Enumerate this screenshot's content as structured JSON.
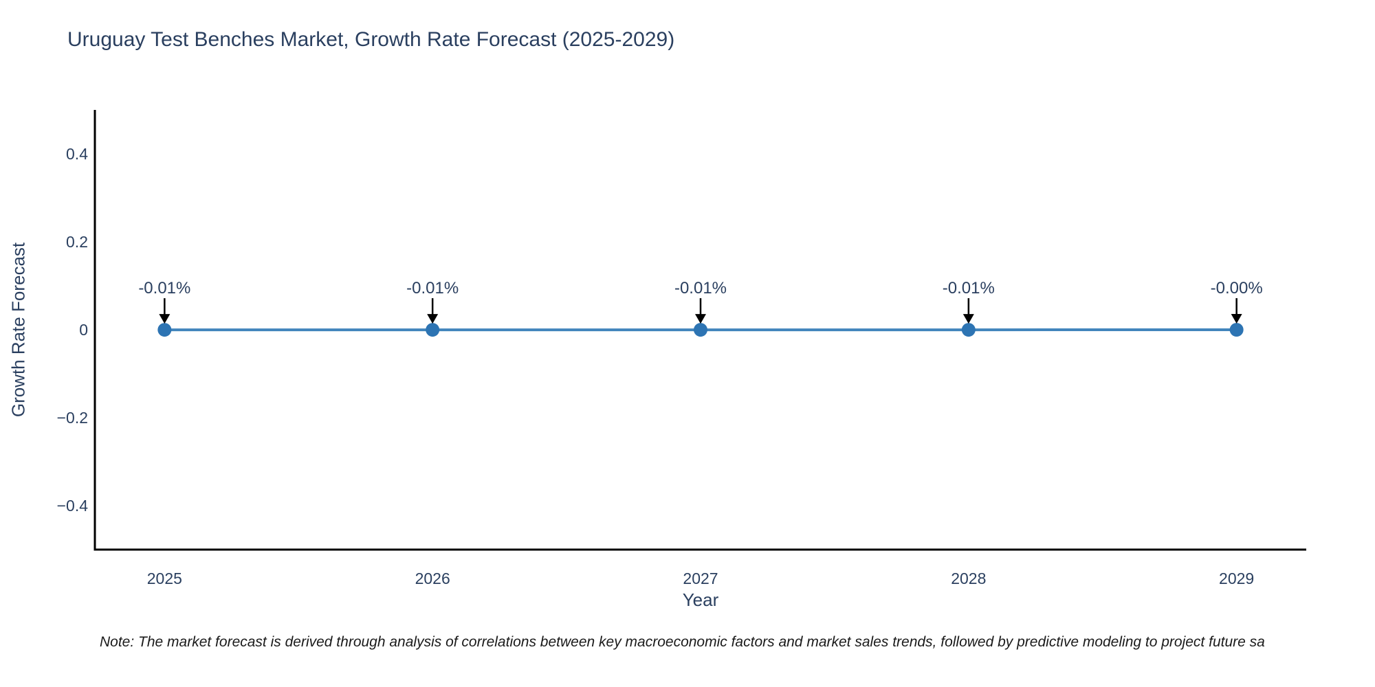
{
  "title": "Uruguay Test Benches Market, Growth Rate Forecast (2025-2029)",
  "note": "Note: The market forecast is derived through analysis of correlations between key macroeconomic factors and market sales trends, followed by predictive modeling to project future sa",
  "colors": {
    "text": "#2a3f5f",
    "note_text": "#1a1a1a",
    "axis_line": "#000000",
    "line": "#4285bc",
    "marker": "#2d74b3",
    "arrow": "#000000",
    "background": "#ffffff"
  },
  "chart_data": {
    "type": "line",
    "title": "Uruguay Test Benches Market, Growth Rate Forecast (2025-2029)",
    "xlabel": "Year",
    "ylabel": "Growth Rate Forecast",
    "x": [
      2025,
      2026,
      2027,
      2028,
      2029
    ],
    "y_percent": [
      -0.01,
      -0.01,
      -0.01,
      -0.01,
      0.0
    ],
    "point_labels": [
      "-0.01%",
      "-0.01%",
      "-0.01%",
      "-0.01%",
      "-0.00%"
    ],
    "xtick_labels": [
      "2025",
      "2026",
      "2027",
      "2028",
      "2029"
    ],
    "ytick_values": [
      0.4,
      0.2,
      0,
      -0.2,
      -0.4
    ],
    "ytick_labels": [
      "0.4",
      "0.2",
      "0",
      "−0.2",
      "−0.4"
    ],
    "xlim": [
      2024.74,
      2029.26
    ],
    "ylim": [
      -0.5,
      0.5
    ],
    "grid": false,
    "legend": "none",
    "marker_style": "circle",
    "annotation_arrows": "down"
  }
}
